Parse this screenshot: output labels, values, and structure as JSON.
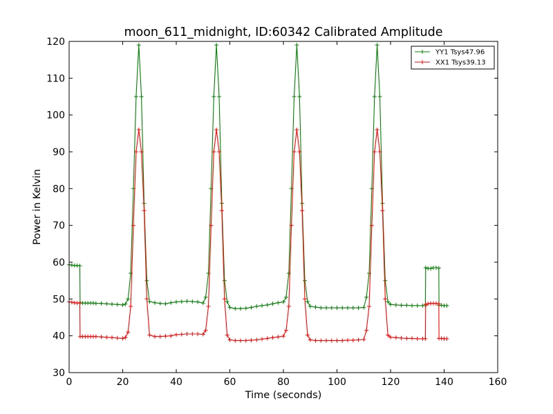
{
  "chart_data": {
    "type": "line",
    "title": "moon_611_midnight, ID:60342 Calibrated Amplitude",
    "xlabel": "Time (seconds)",
    "ylabel": "Power in Kelvin",
    "xlim": [
      0,
      160
    ],
    "ylim": [
      30,
      120
    ],
    "xticks": [
      0,
      20,
      40,
      60,
      80,
      100,
      120,
      140,
      160
    ],
    "yticks": [
      30,
      40,
      50,
      60,
      70,
      80,
      90,
      100,
      110,
      120
    ],
    "grid": false,
    "legend_position": "top-right",
    "series": [
      {
        "name": "YY1 Tsys47.96",
        "color": "#008000",
        "marker": "+",
        "x": [
          0,
          1,
          2,
          3,
          4,
          4.1,
          5,
          6,
          7,
          8,
          9,
          10,
          12,
          14,
          16,
          18,
          20,
          21,
          22,
          23,
          24,
          25,
          26,
          27,
          28,
          29,
          30,
          32,
          34,
          36,
          38,
          40,
          42,
          44,
          46,
          48,
          50,
          51,
          52,
          53,
          54,
          55,
          56,
          57,
          58,
          59,
          60,
          62,
          64,
          66,
          68,
          70,
          72,
          74,
          76,
          78,
          80,
          81,
          82,
          83,
          84,
          85,
          86,
          87,
          88,
          89,
          90,
          92,
          94,
          96,
          98,
          100,
          102,
          104,
          106,
          108,
          110,
          111,
          112,
          113,
          114,
          115,
          116,
          117,
          118,
          119,
          120,
          122,
          124,
          126,
          128,
          130,
          132,
          133,
          133.1,
          134,
          135,
          136,
          137,
          138,
          138.1,
          139,
          140,
          141
        ],
        "y": [
          59.3,
          59.2,
          59.1,
          59.1,
          59,
          49,
          48.9,
          48.9,
          48.9,
          48.9,
          48.9,
          48.8,
          48.8,
          48.7,
          48.6,
          48.5,
          48.4,
          48.6,
          50,
          57,
          80,
          105,
          119,
          105,
          76,
          55,
          49.3,
          49,
          48.8,
          48.7,
          49,
          49.2,
          49.3,
          49.4,
          49.3,
          49.2,
          48.9,
          50.5,
          57,
          80,
          105,
          119,
          105,
          76,
          55,
          49.3,
          47.7,
          47.4,
          47.4,
          47.5,
          47.7,
          48,
          48.2,
          48.4,
          48.7,
          49,
          49.2,
          50.5,
          57,
          80,
          105,
          119,
          105,
          76,
          55,
          49.3,
          48,
          47.8,
          47.6,
          47.6,
          47.6,
          47.6,
          47.6,
          47.6,
          47.6,
          47.6,
          47.7,
          50.5,
          57,
          80,
          105,
          119,
          105,
          76,
          55,
          49.3,
          48.5,
          48.4,
          48.3,
          48.3,
          48.2,
          48.2,
          48.2,
          48.2,
          58.5,
          58.3,
          58.3,
          58.5,
          58.5,
          58.4,
          48.3,
          48.3,
          48.2,
          48.2
        ],
        "extra": []
      },
      {
        "name": "XX1 Tsys39.13",
        "color": "#ff0000",
        "marker": "+",
        "x": [
          0,
          1,
          2,
          3,
          4,
          4.1,
          5,
          6,
          7,
          8,
          9,
          10,
          12,
          14,
          16,
          18,
          20,
          21,
          22,
          23,
          24,
          25,
          26,
          27,
          28,
          29,
          30,
          32,
          34,
          36,
          38,
          40,
          42,
          44,
          46,
          48,
          50,
          51,
          52,
          53,
          54,
          55,
          56,
          57,
          58,
          59,
          60,
          62,
          64,
          66,
          68,
          70,
          72,
          74,
          76,
          78,
          80,
          81,
          82,
          83,
          84,
          85,
          86,
          87,
          88,
          89,
          90,
          92,
          94,
          96,
          98,
          100,
          102,
          104,
          106,
          108,
          110,
          111,
          112,
          113,
          114,
          115,
          116,
          117,
          118,
          119,
          120,
          122,
          124,
          126,
          128,
          130,
          132,
          133,
          133.1,
          134,
          135,
          136,
          137,
          138,
          138.1,
          139,
          140,
          141
        ],
        "y": [
          49.2,
          49.1,
          49,
          48.9,
          48.9,
          39.8,
          39.8,
          39.8,
          39.8,
          39.8,
          39.8,
          39.8,
          39.7,
          39.6,
          39.5,
          39.4,
          39.3,
          39.5,
          41,
          48,
          70,
          90,
          96,
          90,
          74,
          50,
          40.2,
          39.8,
          39.8,
          39.9,
          40,
          40.3,
          40.4,
          40.5,
          40.5,
          40.5,
          40.4,
          41.5,
          48,
          70,
          90,
          96,
          90,
          74,
          50,
          40.2,
          38.9,
          38.7,
          38.7,
          38.7,
          38.8,
          38.9,
          39.1,
          39.3,
          39.5,
          39.7,
          39.9,
          41.5,
          48,
          70,
          90,
          96,
          90,
          74,
          50,
          40.2,
          38.9,
          38.7,
          38.7,
          38.7,
          38.7,
          38.7,
          38.7,
          38.8,
          38.8,
          38.9,
          39,
          41.5,
          48,
          70,
          90,
          96,
          90,
          74,
          50,
          40.2,
          39.6,
          39.5,
          39.4,
          39.3,
          39.3,
          39.2,
          39.2,
          39.2,
          48.5,
          48.7,
          48.8,
          48.8,
          48.8,
          48.7,
          39.3,
          39.3,
          39.2,
          39.2
        ],
        "extra": []
      }
    ]
  }
}
